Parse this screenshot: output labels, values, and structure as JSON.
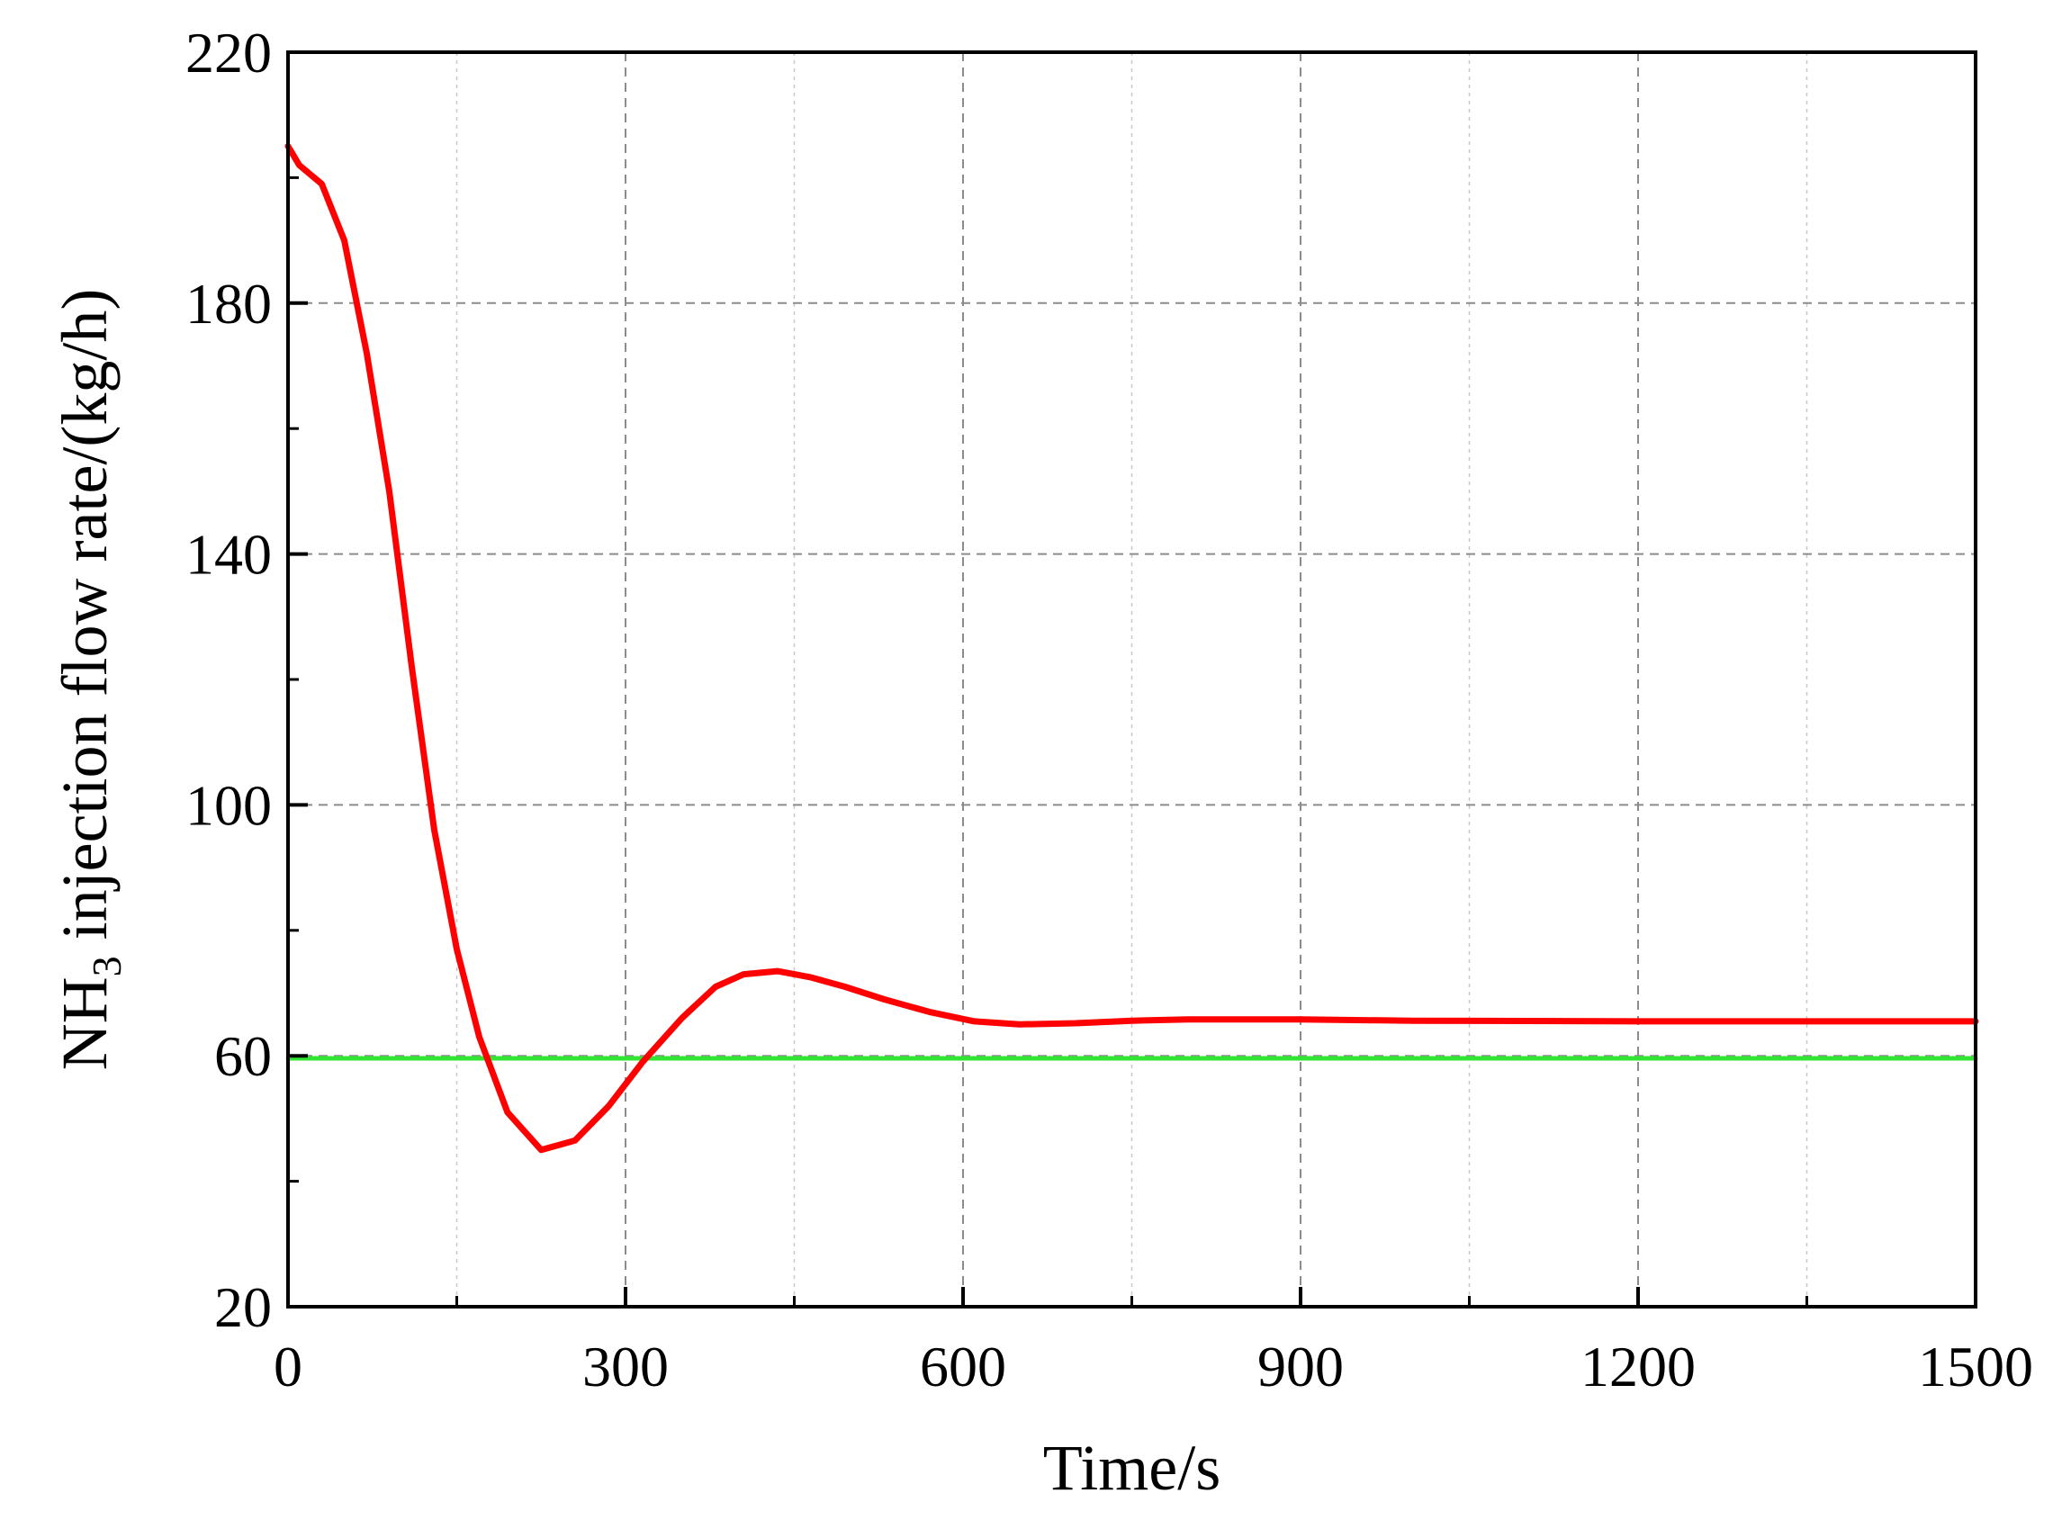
{
  "chart_data": {
    "type": "line",
    "xlabel": "Time/s",
    "ylabel_prefix": "NH",
    "ylabel_subscript": "3",
    "ylabel_suffix": " injection flow rate/(kg/h)",
    "xlim": [
      0,
      1500
    ],
    "ylim": [
      20,
      220
    ],
    "x_ticks": [
      0,
      300,
      600,
      900,
      1200,
      1500
    ],
    "x_tick_labels": [
      "0",
      "300",
      "600",
      "900",
      "1200",
      "1500"
    ],
    "y_ticks": [
      20,
      60,
      100,
      140,
      180,
      220
    ],
    "y_tick_labels": [
      "20",
      "60",
      "100",
      "140",
      "180",
      "220"
    ],
    "grid": true,
    "series": [
      {
        "color": "#33e533",
        "x": [
          0,
          1500
        ],
        "y": [
          59.6,
          59.6
        ]
      },
      {
        "color": "#ff0000",
        "x": [
          0,
          10,
          30,
          50,
          70,
          90,
          110,
          130,
          150,
          170,
          195,
          225,
          255,
          285,
          315,
          350,
          380,
          405,
          435,
          465,
          495,
          530,
          570,
          610,
          650,
          700,
          750,
          800,
          900,
          1000,
          1200,
          1500
        ],
        "y": [
          205,
          202,
          199,
          190,
          172,
          150,
          122,
          96,
          77,
          63,
          51,
          45,
          46.5,
          52,
          59,
          66,
          71,
          73,
          73.5,
          72.5,
          71,
          69,
          67,
          65.5,
          65,
          65.2,
          65.6,
          65.8,
          65.8,
          65.6,
          65.5,
          65.5
        ]
      }
    ]
  }
}
